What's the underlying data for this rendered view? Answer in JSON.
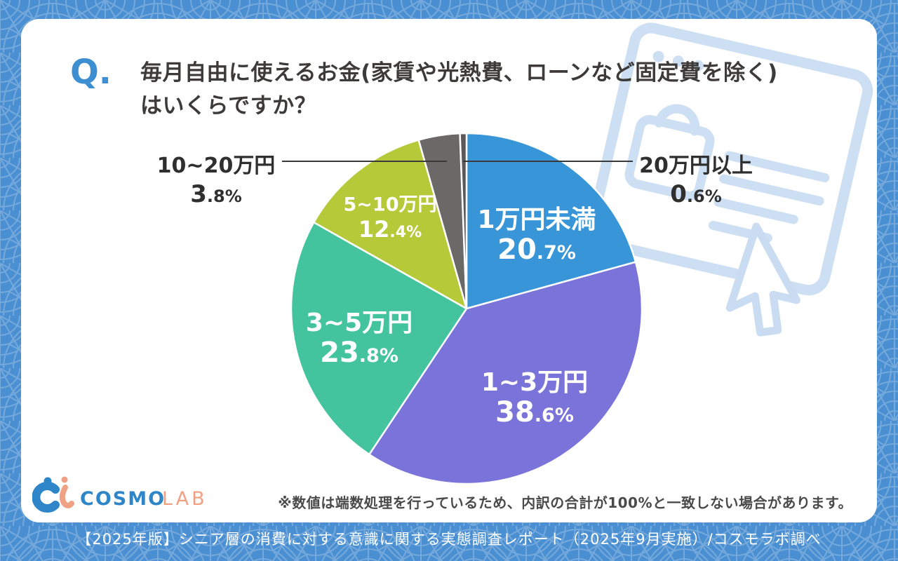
{
  "header": {
    "q_label": "Q.",
    "title_line1": "毎月自由に使えるお金(家賃や光熱費、ローンなど固定費を除く)",
    "title_line2": "はいくらですか？"
  },
  "chart_data": {
    "type": "pie",
    "title": "毎月自由に使えるお金(家賃や光熱費、ローンなど固定費を除く)はいくらですか？",
    "unit": "%",
    "start_angle_deg": 0,
    "direction": "clockwise",
    "legend_position": "labels-on-slices",
    "slices": [
      {
        "label": "1万円未満",
        "value": 20.7,
        "pct_main": "20",
        "pct_sub": ".7%",
        "color": "#3795d8",
        "placement": "inside"
      },
      {
        "label": "1~3万円",
        "value": 38.6,
        "pct_main": "38",
        "pct_sub": ".6%",
        "color": "#7a73d9",
        "placement": "inside"
      },
      {
        "label": "3~5万円",
        "value": 23.8,
        "pct_main": "23",
        "pct_sub": ".8%",
        "color": "#43c39e",
        "placement": "inside"
      },
      {
        "label": "5~10万円",
        "value": 12.4,
        "pct_main": "12",
        "pct_sub": ".4%",
        "color": "#b6ca39",
        "placement": "inside"
      },
      {
        "label": "10~20万円",
        "value": 3.8,
        "pct_main": "3",
        "pct_sub": ".8%",
        "color": "#6b6868",
        "placement": "outside-left"
      },
      {
        "label": "20万円以上",
        "value": 0.6,
        "pct_main": "0",
        "pct_sub": ".6%",
        "color": "#5b5858",
        "placement": "outside-right"
      }
    ]
  },
  "logo": {
    "brand": "COSMO",
    "suffix": "LAB"
  },
  "footnote": "※数値は端数処理を行っているため、内訳の合計が100%と一致しない場合があります。",
  "footer": {
    "text": "【2025年版】シニア層の消費に対する意識に関する実態調査レポート（2025年9月実施）/コスモラボ調べ"
  },
  "colors": {
    "background": "#4a8fd1",
    "pattern_line": "#7fafdf",
    "card": "#ffffff",
    "accent_q": "#3e8ed2",
    "title_text": "#3d3a3a",
    "leader_line": "#3a3a3a",
    "decor_line": "#cddff2",
    "logo_blue": "#2e86c8",
    "logo_orange": "#efa183",
    "footnote_text": "#4a4a4a",
    "footer_text": "#ffffff"
  }
}
